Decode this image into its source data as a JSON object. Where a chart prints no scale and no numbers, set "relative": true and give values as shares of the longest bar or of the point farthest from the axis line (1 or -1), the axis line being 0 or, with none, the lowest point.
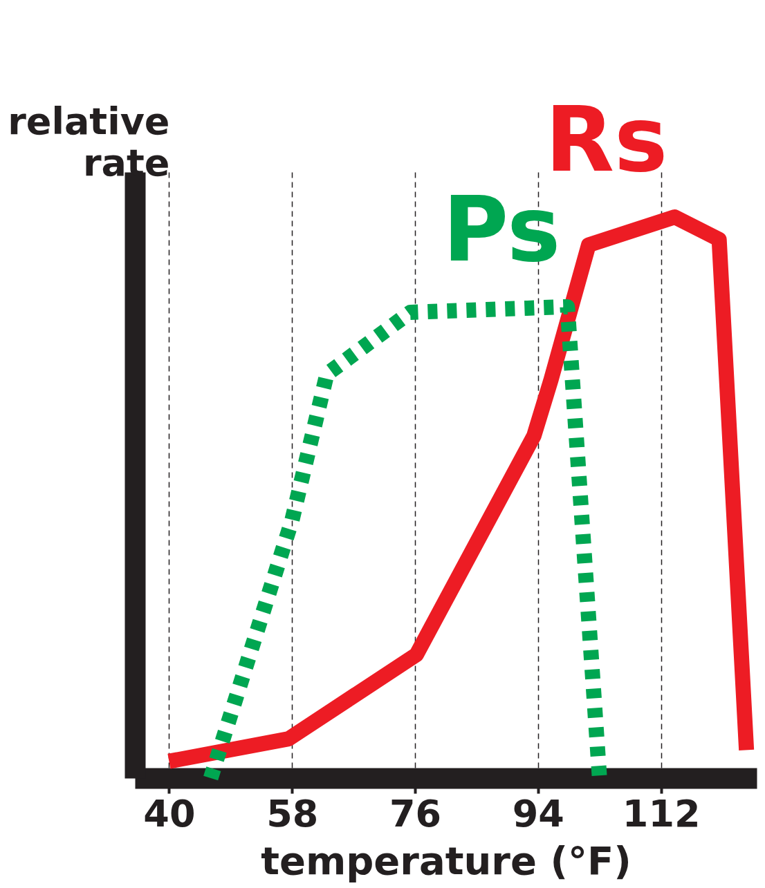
{
  "chart_data": {
    "type": "line",
    "relative": true,
    "xlabel": "temperature  (°F)",
    "ylabel": "relative rate",
    "xlim": [
      35,
      126
    ],
    "xticks": [
      40,
      58,
      76,
      94,
      112
    ],
    "grid": "x",
    "marker": "none",
    "series": [
      {
        "name": "Rs",
        "color": "#ed1c24",
        "line_style": "solid",
        "x": [
          40,
          57.5,
          76.2,
          93.4,
          95.9,
          101.4,
          114,
          120.5,
          124.5
        ],
        "values": [
          0.03,
          0.07,
          0.22,
          0.61,
          0.71,
          0.95,
          1,
          0.96,
          0.05
        ]
      },
      {
        "name": "Ps",
        "color": "#00a651",
        "line_style": "dotted",
        "x": [
          46.1,
          58,
          63.1,
          75.3,
          98.3,
          103
        ],
        "values": [
          0,
          0.46,
          0.72,
          0.83,
          0.84,
          0
        ]
      }
    ]
  }
}
